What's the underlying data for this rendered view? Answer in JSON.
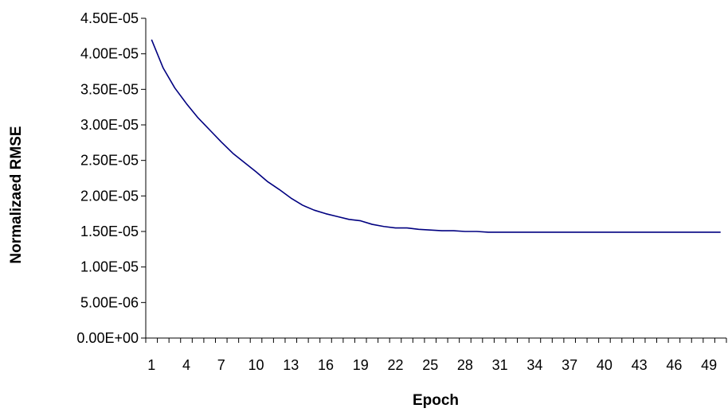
{
  "chart_data": {
    "type": "line",
    "title": "",
    "xlabel": "Epoch",
    "ylabel": "Normalizaed RMSE",
    "ylim": [
      0,
      4.5e-05
    ],
    "xlim": [
      1,
      50
    ],
    "grid": false,
    "legend": "none",
    "line_color": "#000080",
    "y_tick_values": [
      0,
      5e-06,
      1e-05,
      1.5e-05,
      2e-05,
      2.5e-05,
      3e-05,
      3.5e-05,
      4e-05,
      4.5e-05
    ],
    "y_tick_labels": [
      "0.00E+00",
      "5.00E-06",
      "1.00E-05",
      "1.50E-05",
      "2.00E-05",
      "2.50E-05",
      "3.00E-05",
      "3.50E-05",
      "4.00E-05",
      "4.50E-05"
    ],
    "x_tick_labels": [
      "1",
      "4",
      "7",
      "10",
      "13",
      "16",
      "19",
      "22",
      "25",
      "28",
      "31",
      "34",
      "37",
      "40",
      "43",
      "46",
      "49"
    ],
    "series": [
      {
        "x": [
          1,
          2,
          3,
          4,
          5,
          6,
          7,
          8,
          9,
          10,
          11,
          12,
          13,
          14,
          15,
          16,
          17,
          18,
          19,
          20,
          21,
          22,
          23,
          24,
          25,
          26,
          27,
          28,
          29,
          30,
          31,
          32,
          33,
          34,
          35,
          36,
          37,
          38,
          39,
          40,
          41,
          42,
          43,
          44,
          45,
          46,
          47,
          48,
          49,
          50
        ],
        "values": [
          4.2e-05,
          3.8e-05,
          3.52e-05,
          3.3e-05,
          3.1e-05,
          2.93e-05,
          2.76e-05,
          2.6e-05,
          2.47e-05,
          2.34e-05,
          2.2e-05,
          2.09e-05,
          1.97e-05,
          1.87e-05,
          1.8e-05,
          1.75e-05,
          1.71e-05,
          1.67e-05,
          1.65e-05,
          1.6e-05,
          1.57e-05,
          1.55e-05,
          1.55e-05,
          1.53e-05,
          1.52e-05,
          1.51e-05,
          1.51e-05,
          1.5e-05,
          1.5e-05,
          1.49e-05,
          1.49e-05,
          1.49e-05,
          1.49e-05,
          1.49e-05,
          1.49e-05,
          1.49e-05,
          1.49e-05,
          1.49e-05,
          1.49e-05,
          1.49e-05,
          1.49e-05,
          1.49e-05,
          1.49e-05,
          1.49e-05,
          1.49e-05,
          1.49e-05,
          1.49e-05,
          1.49e-05,
          1.49e-05,
          1.49e-05
        ]
      }
    ]
  }
}
